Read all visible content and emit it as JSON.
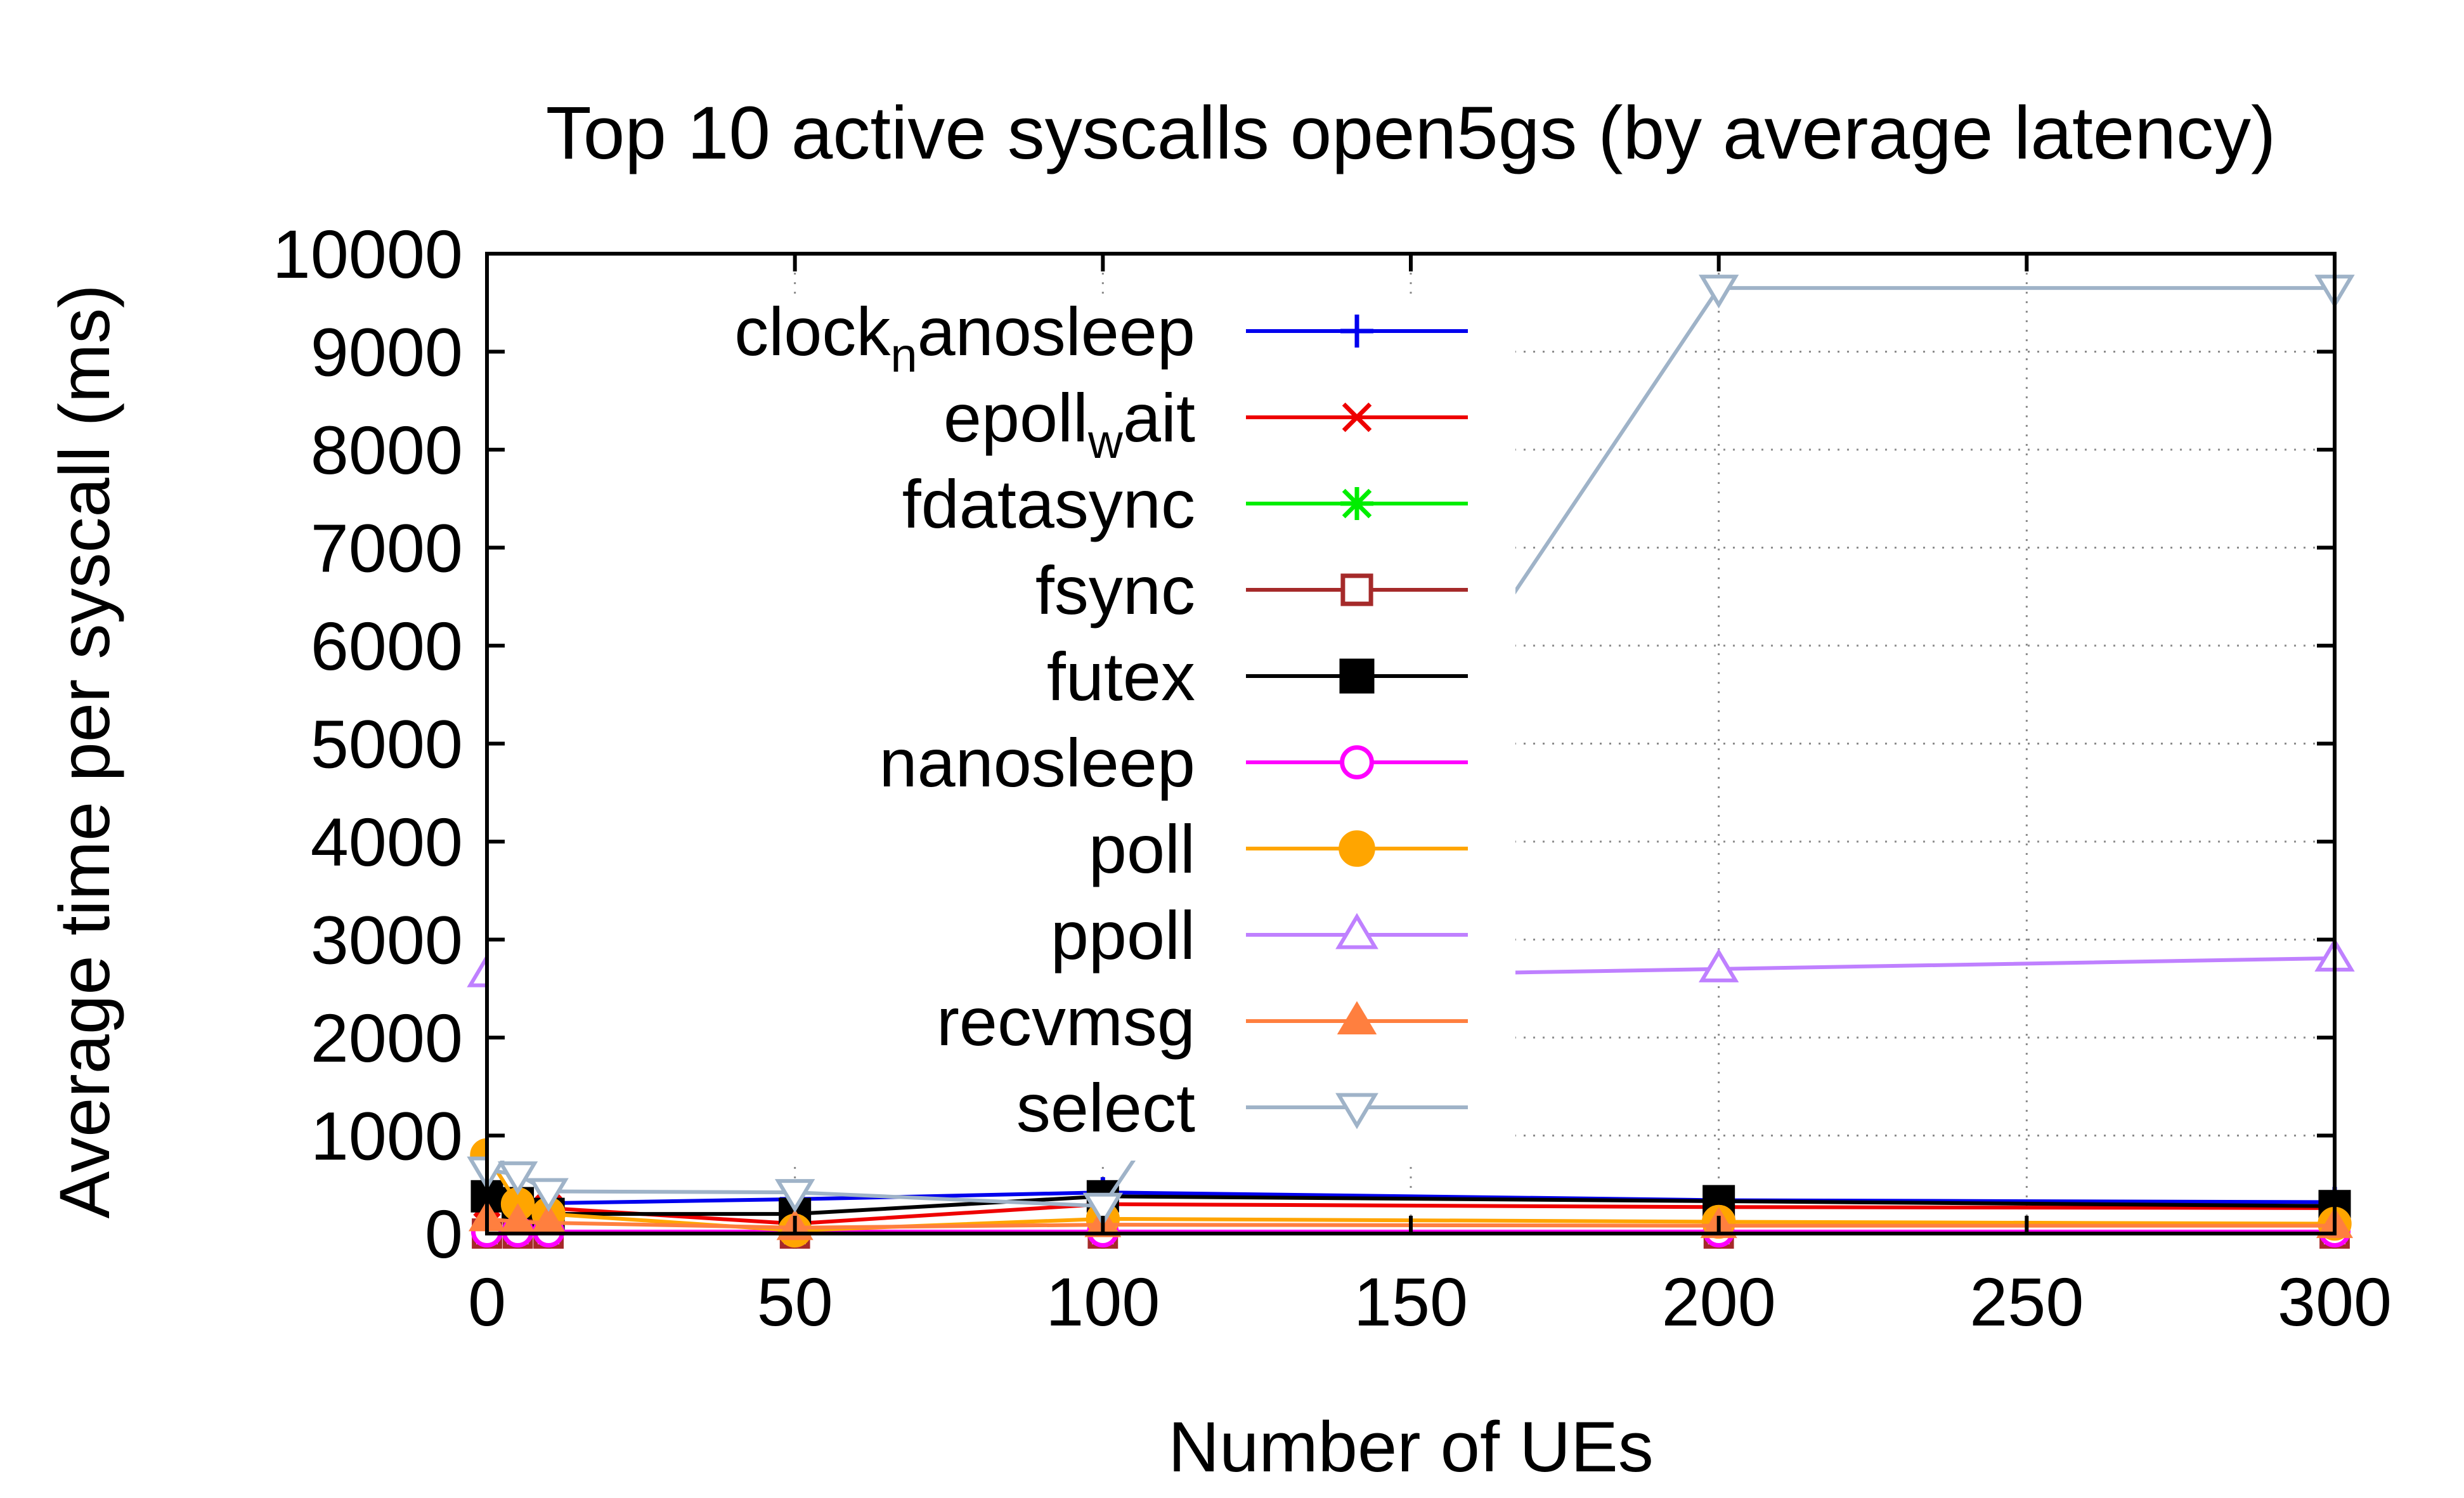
{
  "chart_data": {
    "type": "line",
    "title": "Top 10 active syscalls open5gs (by average latency)",
    "xlabel": "Number of UEs",
    "ylabel": "Average time per syscall (ms)",
    "xlim": [
      0,
      300
    ],
    "ylim": [
      0,
      10000
    ],
    "xticks": [
      0,
      50,
      100,
      150,
      200,
      250,
      300
    ],
    "yticks": [
      0,
      1000,
      2000,
      3000,
      4000,
      5000,
      6000,
      7000,
      8000,
      9000,
      10000
    ],
    "grid": true,
    "legend_position": "top-left",
    "x": [
      0,
      5,
      10,
      50,
      100,
      200,
      300
    ],
    "series": [
      {
        "name": "clock_nanosleep",
        "legend_base": "clock",
        "legend_sub": "n",
        "legend_rest": "anosleep",
        "color": "#0000ee",
        "marker": "plus",
        "values": [
          380,
          340,
          310,
          350,
          420,
          340,
          320
        ]
      },
      {
        "name": "epoll_wait",
        "legend_base": "epoll",
        "legend_sub": "w",
        "legend_rest": "ait",
        "color": "#ee0000",
        "marker": "cross",
        "values": [
          300,
          280,
          260,
          100,
          300,
          270,
          260
        ]
      },
      {
        "name": "fdatasync",
        "color": "#00ee00",
        "marker": "star",
        "values": [
          0,
          0,
          0,
          0,
          0,
          0,
          0
        ]
      },
      {
        "name": "fsync",
        "color": "#a52a2a",
        "marker": "open-square",
        "values": [
          0,
          0,
          0,
          0,
          0,
          0,
          0
        ]
      },
      {
        "name": "futex",
        "color": "#000000",
        "marker": "filled-square",
        "values": [
          380,
          310,
          200,
          200,
          380,
          330,
          280
        ]
      },
      {
        "name": "nanosleep",
        "color": "#ff00ff",
        "marker": "open-circle",
        "values": [
          20,
          20,
          20,
          20,
          20,
          20,
          20
        ]
      },
      {
        "name": "poll",
        "color": "#ffa500",
        "marker": "filled-circle",
        "values": [
          800,
          300,
          200,
          30,
          150,
          120,
          100
        ]
      },
      {
        "name": "ppoll",
        "color": "#bf80ff",
        "marker": "open-triangle-up",
        "values": [
          2650,
          2800,
          2780,
          2680,
          2590,
          2700,
          2810
        ]
      },
      {
        "name": "recvmsg",
        "color": "#ff7f3f",
        "marker": "filled-triangle-up",
        "values": [
          150,
          120,
          110,
          60,
          90,
          80,
          80
        ]
      },
      {
        "name": "select",
        "color": "#9fb3c8",
        "marker": "open-triangle-down",
        "values": [
          650,
          600,
          430,
          420,
          280,
          9650,
          9650
        ]
      }
    ]
  }
}
